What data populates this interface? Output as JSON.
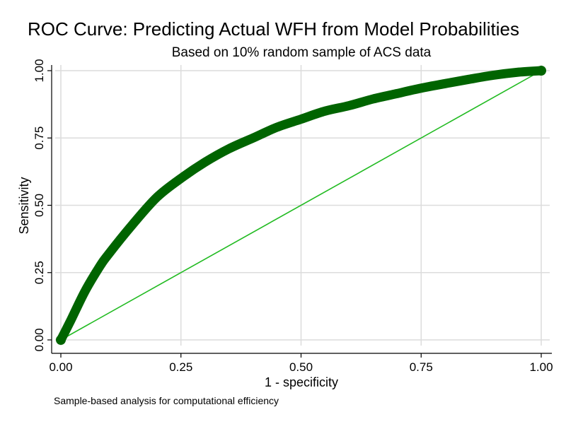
{
  "chart_data": {
    "type": "line",
    "title": "ROC Curve: Predicting Actual WFH from Model Probabilities",
    "subtitle": "Based on 10% random sample of ACS data",
    "xlabel": "1 - specificity",
    "ylabel": "Sensitivity",
    "note": "Sample-based analysis for computational efficiency",
    "xlim": [
      0,
      1
    ],
    "ylim": [
      0,
      1
    ],
    "x_ticks": [
      "0.00",
      "0.25",
      "0.50",
      "0.75",
      "1.00"
    ],
    "y_ticks": [
      "0.00",
      "0.25",
      "0.50",
      "0.75",
      "1.00"
    ],
    "grid": true,
    "series": [
      {
        "x": [
          0.0,
          0.02,
          0.05,
          0.08,
          0.1,
          0.15,
          0.2,
          0.25,
          0.3,
          0.35,
          0.4,
          0.45,
          0.5,
          0.55,
          0.6,
          0.65,
          0.7,
          0.75,
          0.8,
          0.85,
          0.9,
          0.95,
          1.0
        ],
        "y": [
          0.0,
          0.07,
          0.18,
          0.27,
          0.32,
          0.43,
          0.53,
          0.6,
          0.66,
          0.71,
          0.75,
          0.79,
          0.82,
          0.85,
          0.87,
          0.895,
          0.915,
          0.935,
          0.952,
          0.968,
          0.983,
          0.994,
          1.0
        ],
        "color": "#006400"
      },
      {
        "x": [
          0,
          1
        ],
        "y": [
          0,
          1
        ],
        "color": "#22bb22"
      }
    ]
  }
}
